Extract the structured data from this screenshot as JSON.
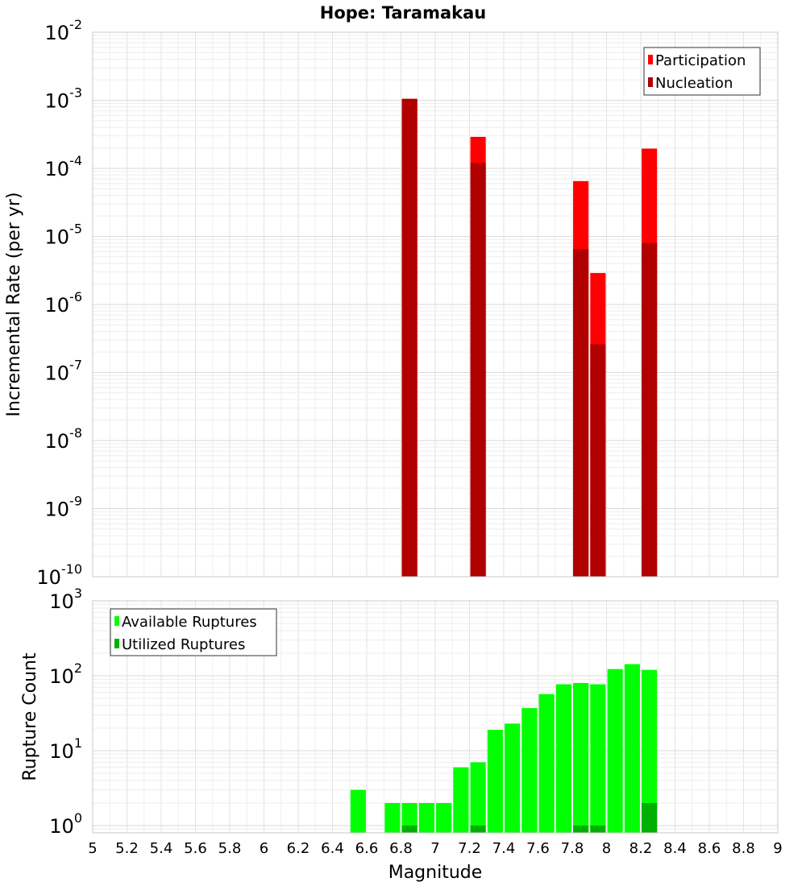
{
  "chart_data": [
    {
      "type": "bar",
      "title": "Hope: Taramakau",
      "xlabel": "Magnitude",
      "ylabel": "Incremental Rate (per yr)",
      "yscale": "log",
      "ylim": [
        1e-10,
        0.01
      ],
      "xlim": [
        5,
        9
      ],
      "ytick_exponents": [
        -10,
        -9,
        -8,
        -7,
        -6,
        -5,
        -4,
        -3,
        -2
      ],
      "grid": true,
      "legend": "top-right",
      "bar_width": 0.09,
      "series": [
        {
          "name": "Participation",
          "color": "#ff0000",
          "x": [
            6.85,
            7.25,
            7.85,
            7.95,
            8.25
          ],
          "values": [
            0.00105,
            0.00029,
            6.5e-05,
            2.9e-06,
            0.000195
          ]
        },
        {
          "name": "Nucleation",
          "color": "#b00000",
          "x": [
            6.85,
            7.25,
            7.85,
            7.95,
            8.25
          ],
          "values": [
            0.00105,
            0.00012,
            6.5e-06,
            2.6e-07,
            8e-06
          ]
        }
      ]
    },
    {
      "type": "bar",
      "title": "",
      "xlabel": "Magnitude",
      "ylabel": "Rupture Count",
      "yscale": "log",
      "ylim": [
        0.8,
        1000
      ],
      "xlim": [
        5,
        9
      ],
      "ytick_exponents": [
        0,
        1,
        2,
        3
      ],
      "xticks": [
        "5",
        "5.2",
        "5.4",
        "5.6",
        "5.8",
        "6",
        "6.2",
        "6.4",
        "6.6",
        "6.8",
        "7",
        "7.2",
        "7.4",
        "7.6",
        "7.8",
        "8",
        "8.2",
        "8.4",
        "8.6",
        "8.8",
        "9"
      ],
      "grid": true,
      "legend": "top-left",
      "bar_width": 0.09,
      "series": [
        {
          "name": "Available Ruptures",
          "color": "#00ff00",
          "x": [
            6.55,
            6.75,
            6.85,
            6.95,
            7.05,
            7.15,
            7.25,
            7.35,
            7.45,
            7.55,
            7.65,
            7.75,
            7.85,
            7.95,
            8.05,
            8.15,
            8.25
          ],
          "values": [
            3,
            2,
            2,
            2,
            2,
            6,
            7,
            19,
            23,
            37,
            57,
            77,
            80,
            77,
            123,
            143,
            120
          ]
        },
        {
          "name": "Utilized Ruptures",
          "color": "#00b000",
          "x": [
            6.85,
            7.25,
            7.85,
            7.95,
            8.25
          ],
          "values": [
            1,
            1,
            1,
            1,
            2
          ]
        }
      ]
    }
  ]
}
